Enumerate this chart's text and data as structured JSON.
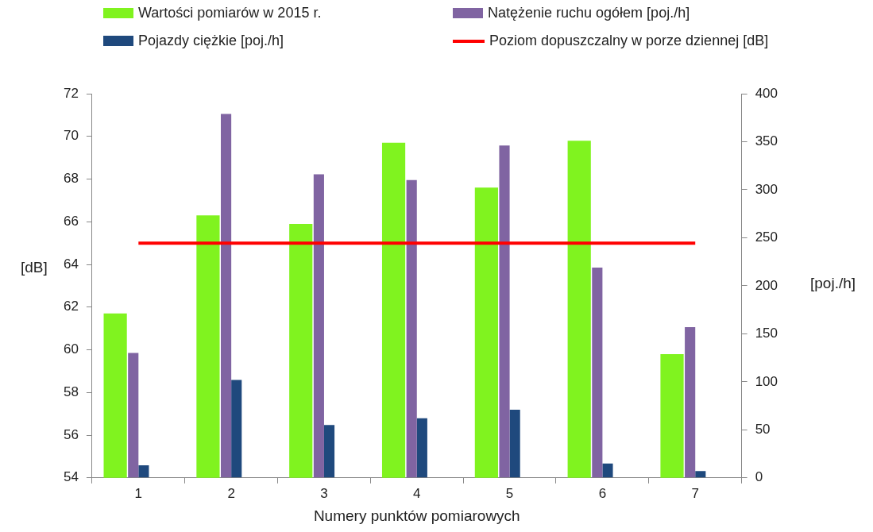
{
  "chart_data": {
    "type": "bar",
    "xlabel": "Numery punktów pomiarowych",
    "ylabel": "[dB]",
    "y2label": "[poj./h]",
    "categories": [
      "1",
      "2",
      "3",
      "4",
      "5",
      "6",
      "7"
    ],
    "series": [
      {
        "name": "Wartości pomiarów w 2015 r.",
        "color": "#80f31f",
        "values": [
          61.7,
          66.3,
          65.9,
          69.7,
          67.6,
          69.8,
          59.8
        ]
      },
      {
        "name": "Natężenie ruchu ogółem [poj./h]",
        "color": "#8064a2",
        "axis": "y2",
        "values": [
          130,
          379,
          316,
          310,
          346,
          219,
          157
        ]
      },
      {
        "name": "Pojazdy ciężkie [poj./h]",
        "color": "#1f497d",
        "axis": "y2",
        "values": [
          13,
          102,
          55,
          62,
          71,
          15,
          7
        ]
      },
      {
        "name": "Poziom dopuszczalny w porze dziennej [dB]",
        "type": "line",
        "color": "#ff0000",
        "marker": "none",
        "values": [
          65,
          65,
          65,
          65,
          65,
          65,
          65
        ]
      }
    ],
    "ylim": [
      54,
      72
    ],
    "yticks": [
      54,
      56,
      58,
      60,
      62,
      64,
      66,
      68,
      70,
      72
    ],
    "y2lim": [
      0,
      400
    ],
    "y2ticks": [
      0,
      50,
      100,
      150,
      200,
      250,
      300,
      350,
      400
    ],
    "grid": false,
    "legend": "top"
  }
}
